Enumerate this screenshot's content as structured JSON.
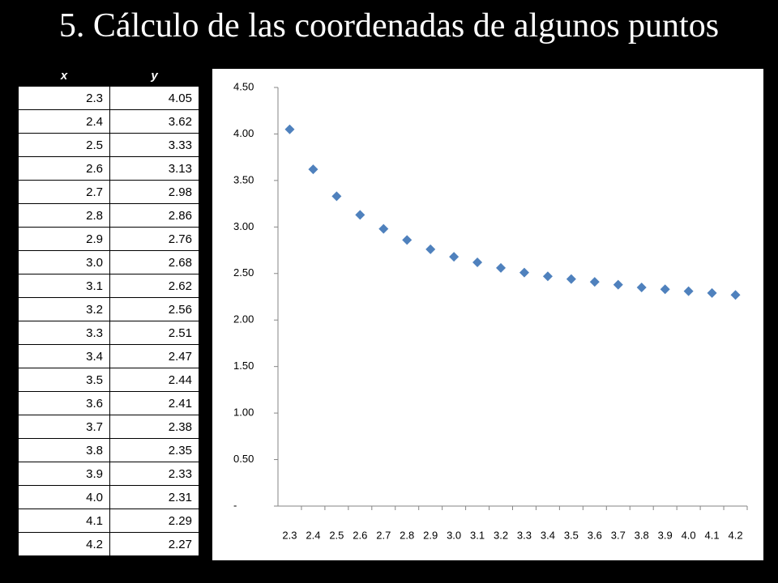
{
  "title": "5. Cálculo de las coordenadas de algunos puntos",
  "table": {
    "header": [
      "x",
      "y"
    ],
    "rows": [
      [
        "2.3",
        "4.05"
      ],
      [
        "2.4",
        "3.62"
      ],
      [
        "2.5",
        "3.33"
      ],
      [
        "2.6",
        "3.13"
      ],
      [
        "2.7",
        "2.98"
      ],
      [
        "2.8",
        "2.86"
      ],
      [
        "2.9",
        "2.76"
      ],
      [
        "3.0",
        "2.68"
      ],
      [
        "3.1",
        "2.62"
      ],
      [
        "3.2",
        "2.56"
      ],
      [
        "3.3",
        "2.51"
      ],
      [
        "3.4",
        "2.47"
      ],
      [
        "3.5",
        "2.44"
      ],
      [
        "3.6",
        "2.41"
      ],
      [
        "3.7",
        "2.38"
      ],
      [
        "3.8",
        "2.35"
      ],
      [
        "3.9",
        "2.33"
      ],
      [
        "4.0",
        "2.31"
      ],
      [
        "4.1",
        "2.29"
      ],
      [
        "4.2",
        "2.27"
      ]
    ]
  },
  "chart_data": {
    "type": "scatter",
    "color": "#4f81bd",
    "categories": [
      "2.3",
      "2.4",
      "2.5",
      "2.6",
      "2.7",
      "2.8",
      "2.9",
      "3.0",
      "3.1",
      "3.2",
      "3.3",
      "3.4",
      "3.5",
      "3.6",
      "3.7",
      "3.8",
      "3.9",
      "4.0",
      "4.1",
      "4.2"
    ],
    "values": [
      4.05,
      3.62,
      3.33,
      3.13,
      2.98,
      2.86,
      2.76,
      2.68,
      2.62,
      2.56,
      2.51,
      2.47,
      2.44,
      2.41,
      2.38,
      2.35,
      2.33,
      2.31,
      2.29,
      2.27
    ],
    "ylim": [
      0,
      4.5
    ],
    "yticks": [
      {
        "value": 0,
        "label": "-"
      },
      {
        "value": 0.5,
        "label": "0.50"
      },
      {
        "value": 1,
        "label": "1.00"
      },
      {
        "value": 1.5,
        "label": "1.50"
      },
      {
        "value": 2,
        "label": "2.00"
      },
      {
        "value": 2.5,
        "label": "2.50"
      },
      {
        "value": 3,
        "label": "3.00"
      },
      {
        "value": 3.5,
        "label": "3.50"
      },
      {
        "value": 4,
        "label": "4.00"
      },
      {
        "value": 4.5,
        "label": "4.50"
      }
    ]
  }
}
